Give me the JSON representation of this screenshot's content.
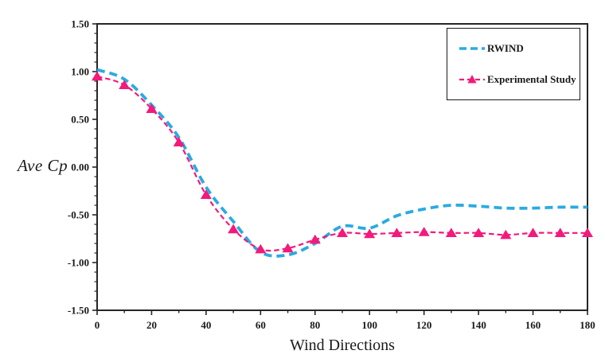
{
  "chart_data": {
    "type": "line",
    "title": "",
    "xlabel": "Wind Directions",
    "ylabel": "Ave Cp",
    "xlim": [
      0,
      180
    ],
    "ylim": [
      -1.5,
      1.5
    ],
    "grid": false,
    "legend_position": "top-right",
    "x_tick_labels": [
      "0",
      "20",
      "40",
      "60",
      "80",
      "100",
      "120",
      "140",
      "160",
      "180"
    ],
    "x_minor_tick_step": 10,
    "y_tick_labels": [
      "-1.50",
      "-1.00",
      "-0.50",
      "0.00",
      "0.50",
      "1.00",
      "1.50"
    ],
    "y_minor_tick_step": 0.1,
    "x": [
      0,
      10,
      20,
      30,
      40,
      50,
      60,
      70,
      80,
      90,
      100,
      110,
      120,
      130,
      140,
      150,
      160,
      170,
      180
    ],
    "series": [
      {
        "name": "RWIND",
        "color": "#29ABE2",
        "line_style": "dashed",
        "marker": "none",
        "values": [
          1.02,
          0.92,
          0.65,
          0.31,
          -0.21,
          -0.57,
          -0.89,
          -0.92,
          -0.8,
          -0.62,
          -0.64,
          -0.51,
          -0.44,
          -0.4,
          -0.41,
          -0.43,
          -0.43,
          -0.42,
          -0.42
        ]
      },
      {
        "name": "Experimental Study",
        "color": "#F4197B",
        "line_style": "dashed",
        "marker": "triangle",
        "values": [
          0.95,
          0.86,
          0.61,
          0.26,
          -0.29,
          -0.65,
          -0.86,
          -0.85,
          -0.76,
          -0.69,
          -0.7,
          -0.69,
          -0.68,
          -0.69,
          -0.69,
          -0.71,
          -0.69,
          -0.69,
          -0.69
        ]
      }
    ],
    "colors": {
      "axis": "#262626",
      "text": "#1a1a1a",
      "background": "#ffffff"
    }
  }
}
